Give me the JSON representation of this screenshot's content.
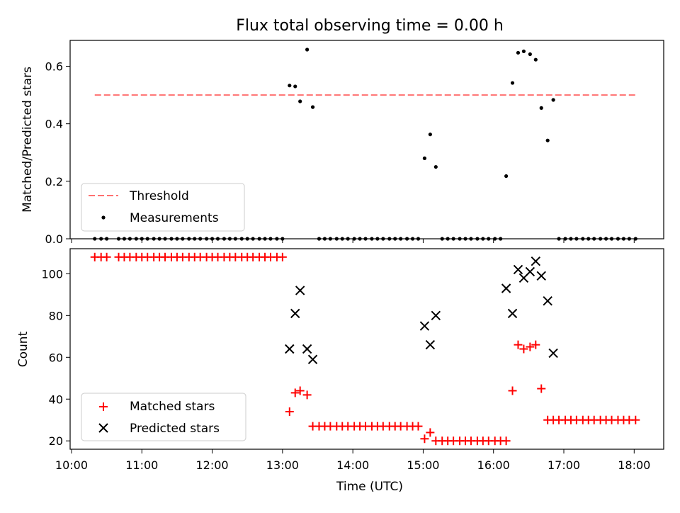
{
  "title": "Flux total observing time = 0.00 h",
  "chart_data": [
    {
      "type": "scatter",
      "ylabel": "Matched/Predicted stars",
      "ylim": [
        0,
        0.69
      ],
      "yticks": [
        "0.0",
        "0.2",
        "0.4",
        "0.6"
      ],
      "threshold": {
        "name": "Threshold",
        "value": 0.5,
        "color": "#ff7070",
        "x_range": [
          10.33,
          18.03
        ]
      },
      "legend": {
        "position": "lower-left",
        "entries": [
          "Threshold",
          "Measurements"
        ]
      },
      "series": [
        {
          "name": "Measurements",
          "color": "#000000",
          "x": [
            10.33,
            10.42,
            10.5,
            10.67,
            10.75,
            10.83,
            10.92,
            11.0,
            11.08,
            11.17,
            11.25,
            11.33,
            11.42,
            11.5,
            11.58,
            11.67,
            11.75,
            11.83,
            11.92,
            12.0,
            12.08,
            12.17,
            12.25,
            12.33,
            12.42,
            12.5,
            12.58,
            12.67,
            12.75,
            12.83,
            12.92,
            13.0,
            13.1,
            13.18,
            13.25,
            13.35,
            13.43,
            13.52,
            13.6,
            13.68,
            13.77,
            13.85,
            13.93,
            14.02,
            14.1,
            14.18,
            14.27,
            14.35,
            14.43,
            14.52,
            14.6,
            14.68,
            14.77,
            14.85,
            14.93,
            15.02,
            15.1,
            15.18,
            15.27,
            15.35,
            15.43,
            15.52,
            15.6,
            15.68,
            15.77,
            15.85,
            15.93,
            16.02,
            16.1,
            16.18,
            16.27,
            16.35,
            16.43,
            16.52,
            16.6,
            16.68,
            16.77,
            16.85,
            16.93,
            17.02,
            17.1,
            17.18,
            17.27,
            17.35,
            17.43,
            17.52,
            17.6,
            17.68,
            17.77,
            17.85,
            17.93,
            18.02
          ],
          "y": [
            0,
            0,
            0,
            0,
            0,
            0,
            0,
            0,
            0,
            0,
            0,
            0,
            0,
            0,
            0,
            0,
            0,
            0,
            0,
            0,
            0,
            0,
            0,
            0,
            0,
            0,
            0,
            0,
            0,
            0,
            0,
            0,
            0.533,
            0.53,
            0.478,
            0.658,
            0.458,
            0,
            0,
            0,
            0,
            0,
            0,
            0,
            0,
            0,
            0,
            0,
            0,
            0,
            0,
            0,
            0,
            0,
            0,
            0.28,
            0.363,
            0.25,
            0,
            0,
            0,
            0,
            0,
            0,
            0,
            0,
            0,
            0,
            0,
            0.218,
            0.542,
            0.647,
            0.652,
            0.642,
            0.623,
            0.455,
            0.342,
            0.483,
            0,
            0,
            0,
            0,
            0,
            0,
            0,
            0,
            0,
            0,
            0,
            0,
            0,
            0
          ]
        }
      ]
    },
    {
      "type": "scatter",
      "xlabel": "Time (UTC)",
      "ylabel": "Count",
      "xlim": [
        9.98,
        18.42
      ],
      "ylim": [
        16,
        112
      ],
      "xticks": [
        "10:00",
        "11:00",
        "12:00",
        "13:00",
        "14:00",
        "15:00",
        "16:00",
        "17:00",
        "18:00"
      ],
      "xtick_values": [
        10,
        11,
        12,
        13,
        14,
        15,
        16,
        17,
        18
      ],
      "yticks": [
        "20",
        "40",
        "60",
        "80",
        "100"
      ],
      "ytick_values": [
        20,
        40,
        60,
        80,
        100
      ],
      "legend": {
        "position": "lower-left",
        "entries": [
          "Matched stars",
          "Predicted stars"
        ]
      },
      "series": [
        {
          "name": "Matched stars",
          "color": "#ff0000",
          "marker": "plus",
          "x": [
            10.33,
            10.42,
            10.5,
            10.67,
            10.75,
            10.83,
            10.92,
            11.0,
            11.08,
            11.17,
            11.25,
            11.33,
            11.42,
            11.5,
            11.58,
            11.67,
            11.75,
            11.83,
            11.92,
            12.0,
            12.08,
            12.17,
            12.25,
            12.33,
            12.42,
            12.5,
            12.58,
            12.67,
            12.75,
            12.83,
            12.92,
            13.0,
            13.1,
            13.18,
            13.25,
            13.35,
            13.43,
            13.52,
            13.6,
            13.68,
            13.77,
            13.85,
            13.93,
            14.02,
            14.1,
            14.18,
            14.27,
            14.35,
            14.43,
            14.52,
            14.6,
            14.68,
            14.77,
            14.85,
            14.93,
            15.02,
            15.1,
            15.18,
            15.27,
            15.35,
            15.43,
            15.52,
            15.6,
            15.68,
            15.77,
            15.85,
            15.93,
            16.02,
            16.1,
            16.18,
            16.27,
            16.35,
            16.43,
            16.52,
            16.6,
            16.68,
            16.77,
            16.85,
            16.93,
            17.02,
            17.1,
            17.18,
            17.27,
            17.35,
            17.43,
            17.52,
            17.6,
            17.68,
            17.77,
            17.85,
            17.93,
            18.02
          ],
          "y": [
            108,
            108,
            108,
            108,
            108,
            108,
            108,
            108,
            108,
            108,
            108,
            108,
            108,
            108,
            108,
            108,
            108,
            108,
            108,
            108,
            108,
            108,
            108,
            108,
            108,
            108,
            108,
            108,
            108,
            108,
            108,
            108,
            34,
            43,
            44,
            42,
            27,
            27,
            27,
            27,
            27,
            27,
            27,
            27,
            27,
            27,
            27,
            27,
            27,
            27,
            27,
            27,
            27,
            27,
            27,
            21,
            24,
            20,
            20,
            20,
            20,
            20,
            20,
            20,
            20,
            20,
            20,
            20,
            20,
            20,
            44,
            66,
            64,
            65,
            66,
            45,
            30,
            30,
            30,
            30,
            30,
            30,
            30,
            30,
            30,
            30,
            30,
            30,
            30,
            30,
            30,
            30
          ]
        },
        {
          "name": "Predicted stars",
          "color": "#000000",
          "marker": "x",
          "x": [
            13.1,
            13.18,
            13.25,
            13.35,
            13.43,
            15.02,
            15.1,
            15.18,
            16.18,
            16.27,
            16.35,
            16.43,
            16.52,
            16.6,
            16.68,
            16.77,
            16.85
          ],
          "y": [
            64,
            81,
            92,
            64,
            59,
            75,
            66,
            80,
            93,
            81,
            102,
            98,
            101,
            106,
            99,
            87,
            62
          ]
        }
      ]
    }
  ]
}
